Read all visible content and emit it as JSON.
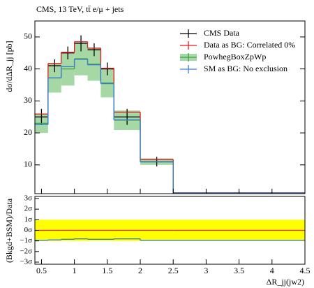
{
  "chart_data": {
    "type": "histogram",
    "title": "CMS, 13 TeV, tt̄ e/μ + jets",
    "ylabel": "dσ/dΔR_jj [pb]",
    "xlabel": "ΔR_jj(jw2)",
    "bins": [
      0.4,
      0.6,
      0.8,
      1.0,
      1.2,
      1.4,
      1.6,
      2.0,
      2.5,
      4.5
    ],
    "xlim": [
      0.4,
      4.5
    ],
    "xticks": [
      0.5,
      1,
      1.5,
      2,
      2.5,
      3,
      3.5,
      4,
      4.5
    ],
    "ylim": [
      1,
      55
    ],
    "yticks": [
      10,
      20,
      30,
      40,
      50
    ],
    "legend": "upper right",
    "series": [
      {
        "name": "CMS Data",
        "color": "#000000",
        "style": "points",
        "values": [
          25,
          41,
          45,
          48,
          46,
          40,
          25,
          11,
          1.3
        ],
        "errors": [
          2.5,
          2,
          2,
          2.5,
          2,
          2,
          2.5,
          1.5,
          0.3
        ]
      },
      {
        "name": "Data as BG: Correlated 0%",
        "color": "#e41a1c",
        "style": "step",
        "values": [
          25.9,
          41.7,
          45.2,
          48.5,
          46.5,
          40.2,
          26.5,
          11.7,
          1.3
        ]
      },
      {
        "name": "PowhegBoxZpWp",
        "color": "#3ca03c",
        "band_color": "#a6d8a6",
        "style": "band",
        "values": [
          23,
          37.2,
          40,
          43.2,
          41.5,
          35.6,
          24,
          11,
          1.2
        ],
        "low": [
          20,
          32.6,
          34.8,
          38,
          36.3,
          31.1,
          20.9,
          10,
          1.1
        ],
        "high": [
          26,
          41.7,
          45.2,
          48.3,
          46.7,
          40.2,
          27,
          12,
          1.3
        ]
      },
      {
        "name": "SM as BG: No exclusion",
        "color": "#3a7bd5",
        "style": "step",
        "values": [
          22.6,
          37.2,
          40.7,
          43,
          41.3,
          35.4,
          24.1,
          10.9,
          1.2
        ]
      }
    ],
    "ratio": {
      "ylabel": "(Bkgd+BSM)/Data",
      "ylim": [
        -3.2,
        3.2
      ],
      "yticks": [
        {
          "value": 3,
          "label": "3σ"
        },
        {
          "value": 2,
          "label": "2σ"
        },
        {
          "value": 1,
          "label": "1σ"
        },
        {
          "value": 0,
          "label": "0σ"
        },
        {
          "value": -1,
          "label": "−1σ"
        },
        {
          "value": -2,
          "label": "−2σ"
        },
        {
          "value": -3,
          "label": "−3σ"
        }
      ],
      "band": [
        -1,
        1
      ],
      "band_color": "#ffff00",
      "series": [
        {
          "color": "#e41a1c",
          "values": [
            0,
            0,
            0,
            0,
            0,
            0,
            0,
            0,
            0
          ]
        },
        {
          "color": "#3ca03c",
          "values": [
            -0.95,
            -0.9,
            -0.85,
            -0.8,
            -0.85,
            -0.85,
            -0.8,
            -0.95,
            -0.95
          ]
        },
        {
          "color": "#3a7bd5",
          "values": [
            -0.95,
            -0.9,
            -0.85,
            -0.8,
            -0.85,
            -0.85,
            -0.8,
            -0.95,
            -0.95
          ]
        }
      ]
    }
  }
}
